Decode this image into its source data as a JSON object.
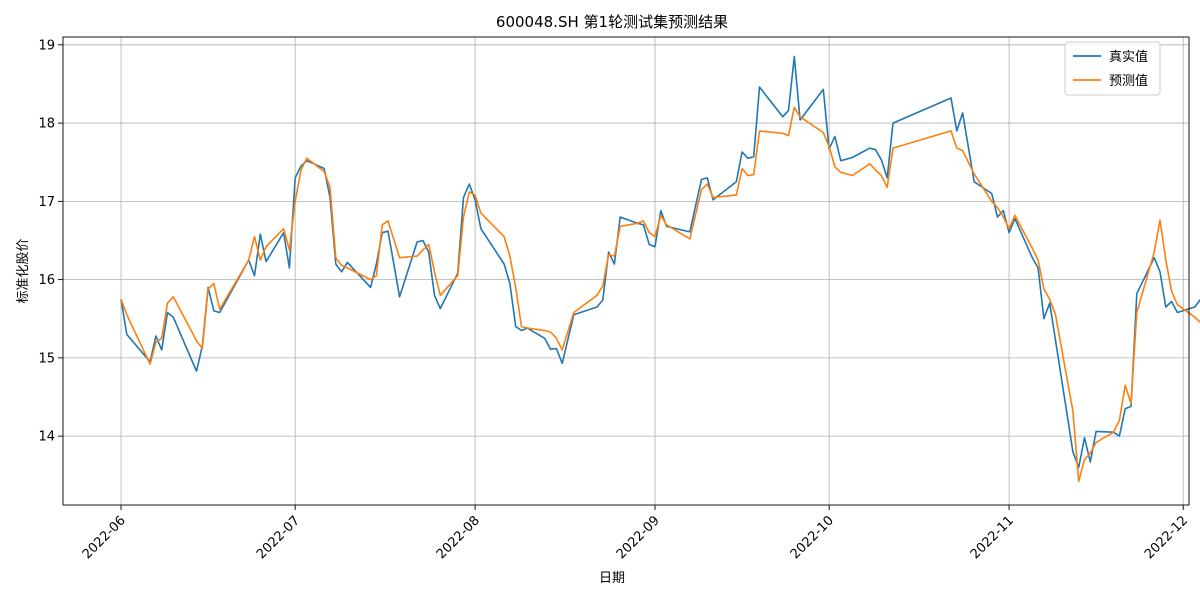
{
  "chart_data": {
    "type": "line",
    "title": "600048.SH 第1轮测试集预测结果",
    "xlabel": "日期",
    "ylabel": "标准化股价",
    "xlim": [
      "2022-05-22",
      "2022-12-02"
    ],
    "ylim": [
      13.12,
      19.1
    ],
    "x_ticks": [
      "2022-06",
      "2022-07",
      "2022-08",
      "2022-09",
      "2022-10",
      "2022-11",
      "2022-12"
    ],
    "y_ticks": [
      14,
      15,
      16,
      17,
      18,
      19
    ],
    "grid": true,
    "legend_position": "top-right",
    "series": [
      {
        "name": "真实值",
        "color": "#1f77b4",
        "points": [
          [
            "2022-06-01",
            15.75
          ],
          [
            "2022-06-02",
            15.3
          ],
          [
            "2022-06-06",
            14.95
          ],
          [
            "2022-06-07",
            15.28
          ],
          [
            "2022-06-08",
            15.1
          ],
          [
            "2022-06-09",
            15.58
          ],
          [
            "2022-06-10",
            15.52
          ],
          [
            "2022-06-14",
            14.83
          ],
          [
            "2022-06-15",
            15.15
          ],
          [
            "2022-06-16",
            15.9
          ],
          [
            "2022-06-17",
            15.6
          ],
          [
            "2022-06-18",
            15.58
          ],
          [
            "2022-06-23",
            16.25
          ],
          [
            "2022-06-24",
            16.05
          ],
          [
            "2022-06-25",
            16.58
          ],
          [
            "2022-06-26",
            16.23
          ],
          [
            "2022-06-29",
            16.6
          ],
          [
            "2022-06-30",
            16.15
          ],
          [
            "2022-07-01",
            17.3
          ],
          [
            "2022-07-02",
            17.45
          ],
          [
            "2022-07-03",
            17.52
          ],
          [
            "2022-07-06",
            17.42
          ],
          [
            "2022-07-07",
            17.05
          ],
          [
            "2022-07-08",
            16.2
          ],
          [
            "2022-07-09",
            16.1
          ],
          [
            "2022-07-10",
            16.22
          ],
          [
            "2022-07-14",
            15.9
          ],
          [
            "2022-07-15",
            16.2
          ],
          [
            "2022-07-16",
            16.6
          ],
          [
            "2022-07-17",
            16.62
          ],
          [
            "2022-07-19",
            15.78
          ],
          [
            "2022-07-22",
            16.48
          ],
          [
            "2022-07-23",
            16.5
          ],
          [
            "2022-07-24",
            16.35
          ],
          [
            "2022-07-25",
            15.8
          ],
          [
            "2022-07-26",
            15.63
          ],
          [
            "2022-07-29",
            16.08
          ],
          [
            "2022-07-30",
            17.05
          ],
          [
            "2022-07-31",
            17.22
          ],
          [
            "2022-08-01",
            17.02
          ],
          [
            "2022-08-02",
            16.65
          ],
          [
            "2022-08-06",
            16.2
          ],
          [
            "2022-08-07",
            15.95
          ],
          [
            "2022-08-08",
            15.4
          ],
          [
            "2022-08-09",
            15.35
          ],
          [
            "2022-08-10",
            15.38
          ],
          [
            "2022-08-13",
            15.25
          ],
          [
            "2022-08-14",
            15.11
          ],
          [
            "2022-08-15",
            15.12
          ],
          [
            "2022-08-16",
            14.93
          ],
          [
            "2022-08-18",
            15.55
          ],
          [
            "2022-08-22",
            15.65
          ],
          [
            "2022-08-23",
            15.74
          ],
          [
            "2022-08-24",
            16.35
          ],
          [
            "2022-08-25",
            16.2
          ],
          [
            "2022-08-26",
            16.8
          ],
          [
            "2022-08-29",
            16.72
          ],
          [
            "2022-08-30",
            16.7
          ],
          [
            "2022-08-31",
            16.45
          ],
          [
            "2022-09-01",
            16.42
          ],
          [
            "2022-09-02",
            16.88
          ],
          [
            "2022-09-03",
            16.68
          ],
          [
            "2022-09-07",
            16.61
          ],
          [
            "2022-09-09",
            17.28
          ],
          [
            "2022-09-10",
            17.3
          ],
          [
            "2022-09-11",
            17.02
          ],
          [
            "2022-09-15",
            17.25
          ],
          [
            "2022-09-16",
            17.63
          ],
          [
            "2022-09-17",
            17.55
          ],
          [
            "2022-09-18",
            17.57
          ],
          [
            "2022-09-19",
            18.46
          ],
          [
            "2022-09-23",
            18.08
          ],
          [
            "2022-09-24",
            18.16
          ],
          [
            "2022-09-25",
            18.85
          ],
          [
            "2022-09-26",
            18.04
          ],
          [
            "2022-09-30",
            18.43
          ],
          [
            "2022-10-01",
            17.67
          ],
          [
            "2022-10-02",
            17.83
          ],
          [
            "2022-10-03",
            17.52
          ],
          [
            "2022-10-05",
            17.56
          ],
          [
            "2022-10-08",
            17.68
          ],
          [
            "2022-10-09",
            17.66
          ],
          [
            "2022-10-10",
            17.53
          ],
          [
            "2022-10-11",
            17.3
          ],
          [
            "2022-10-12",
            18.0
          ],
          [
            "2022-10-22",
            18.32
          ],
          [
            "2022-10-23",
            17.9
          ],
          [
            "2022-10-24",
            18.13
          ],
          [
            "2022-10-26",
            17.25
          ],
          [
            "2022-10-29",
            17.1
          ],
          [
            "2022-10-30",
            16.8
          ],
          [
            "2022-10-31",
            16.88
          ],
          [
            "2022-11-01",
            16.6
          ],
          [
            "2022-11-02",
            16.78
          ],
          [
            "2022-11-05",
            16.28
          ],
          [
            "2022-11-06",
            16.15
          ],
          [
            "2022-11-07",
            15.5
          ],
          [
            "2022-11-08",
            15.7
          ],
          [
            "2022-11-12",
            13.8
          ],
          [
            "2022-11-13",
            13.6
          ],
          [
            "2022-11-14",
            13.98
          ],
          [
            "2022-11-15",
            13.67
          ],
          [
            "2022-11-16",
            14.06
          ],
          [
            "2022-11-19",
            14.05
          ],
          [
            "2022-11-20",
            14.0
          ],
          [
            "2022-11-21",
            14.35
          ],
          [
            "2022-11-22",
            14.38
          ],
          [
            "2022-11-23",
            15.82
          ],
          [
            "2022-11-26",
            16.28
          ],
          [
            "2022-11-27",
            16.1
          ],
          [
            "2022-11-28",
            15.65
          ],
          [
            "2022-11-29",
            15.72
          ],
          [
            "2022-11-30",
            15.58
          ],
          [
            "2022-12-03",
            15.65
          ],
          [
            "2022-12-04",
            15.75
          ],
          [
            "2022-12-05",
            15.8
          ]
        ]
      },
      {
        "name": "预测值",
        "color": "#ff7f0e",
        "points": [
          [
            "2022-06-01",
            15.75
          ],
          [
            "2022-06-02",
            15.55
          ],
          [
            "2022-06-06",
            14.92
          ],
          [
            "2022-06-07",
            15.2
          ],
          [
            "2022-06-08",
            15.25
          ],
          [
            "2022-06-09",
            15.7
          ],
          [
            "2022-06-10",
            15.78
          ],
          [
            "2022-06-14",
            15.22
          ],
          [
            "2022-06-15",
            15.12
          ],
          [
            "2022-06-16",
            15.88
          ],
          [
            "2022-06-17",
            15.95
          ],
          [
            "2022-06-18",
            15.62
          ],
          [
            "2022-06-23",
            16.25
          ],
          [
            "2022-06-24",
            16.55
          ],
          [
            "2022-06-25",
            16.25
          ],
          [
            "2022-06-26",
            16.42
          ],
          [
            "2022-06-29",
            16.65
          ],
          [
            "2022-06-30",
            16.38
          ],
          [
            "2022-07-01",
            17.0
          ],
          [
            "2022-07-02",
            17.4
          ],
          [
            "2022-07-03",
            17.55
          ],
          [
            "2022-07-06",
            17.38
          ],
          [
            "2022-07-07",
            17.18
          ],
          [
            "2022-07-08",
            16.28
          ],
          [
            "2022-07-09",
            16.18
          ],
          [
            "2022-07-10",
            16.15
          ],
          [
            "2022-07-14",
            16.0
          ],
          [
            "2022-07-15",
            16.05
          ],
          [
            "2022-07-16",
            16.7
          ],
          [
            "2022-07-17",
            16.75
          ],
          [
            "2022-07-19",
            16.28
          ],
          [
            "2022-07-22",
            16.3
          ],
          [
            "2022-07-23",
            16.38
          ],
          [
            "2022-07-24",
            16.45
          ],
          [
            "2022-07-25",
            16.1
          ],
          [
            "2022-07-26",
            15.8
          ],
          [
            "2022-07-29",
            16.05
          ],
          [
            "2022-07-30",
            16.8
          ],
          [
            "2022-07-31",
            17.12
          ],
          [
            "2022-08-01",
            17.08
          ],
          [
            "2022-08-02",
            16.85
          ],
          [
            "2022-08-06",
            16.55
          ],
          [
            "2022-08-07",
            16.3
          ],
          [
            "2022-08-08",
            15.9
          ],
          [
            "2022-08-09",
            15.4
          ],
          [
            "2022-08-10",
            15.38
          ],
          [
            "2022-08-13",
            15.35
          ],
          [
            "2022-08-14",
            15.33
          ],
          [
            "2022-08-15",
            15.25
          ],
          [
            "2022-08-16",
            15.1
          ],
          [
            "2022-08-18",
            15.58
          ],
          [
            "2022-08-22",
            15.8
          ],
          [
            "2022-08-23",
            15.92
          ],
          [
            "2022-08-24",
            16.32
          ],
          [
            "2022-08-25",
            16.3
          ],
          [
            "2022-08-26",
            16.68
          ],
          [
            "2022-08-29",
            16.72
          ],
          [
            "2022-08-30",
            16.75
          ],
          [
            "2022-08-31",
            16.6
          ],
          [
            "2022-09-01",
            16.55
          ],
          [
            "2022-09-02",
            16.82
          ],
          [
            "2022-09-03",
            16.7
          ],
          [
            "2022-09-07",
            16.52
          ],
          [
            "2022-09-09",
            17.15
          ],
          [
            "2022-09-10",
            17.22
          ],
          [
            "2022-09-11",
            17.05
          ],
          [
            "2022-09-15",
            17.08
          ],
          [
            "2022-09-16",
            17.42
          ],
          [
            "2022-09-17",
            17.33
          ],
          [
            "2022-09-18",
            17.34
          ],
          [
            "2022-09-19",
            17.9
          ],
          [
            "2022-09-23",
            17.87
          ],
          [
            "2022-09-24",
            17.84
          ],
          [
            "2022-09-25",
            18.2
          ],
          [
            "2022-09-26",
            18.08
          ],
          [
            "2022-09-30",
            17.88
          ],
          [
            "2022-10-01",
            17.7
          ],
          [
            "2022-10-02",
            17.44
          ],
          [
            "2022-10-03",
            17.37
          ],
          [
            "2022-10-05",
            17.33
          ],
          [
            "2022-10-08",
            17.48
          ],
          [
            "2022-10-09",
            17.4
          ],
          [
            "2022-10-10",
            17.33
          ],
          [
            "2022-10-11",
            17.18
          ],
          [
            "2022-10-12",
            17.68
          ],
          [
            "2022-10-22",
            17.9
          ],
          [
            "2022-10-23",
            17.68
          ],
          [
            "2022-10-24",
            17.65
          ],
          [
            "2022-10-26",
            17.35
          ],
          [
            "2022-10-29",
            17.0
          ],
          [
            "2022-10-30",
            16.92
          ],
          [
            "2022-10-31",
            16.8
          ],
          [
            "2022-11-01",
            16.65
          ],
          [
            "2022-11-02",
            16.82
          ],
          [
            "2022-11-05",
            16.4
          ],
          [
            "2022-11-06",
            16.25
          ],
          [
            "2022-11-07",
            15.88
          ],
          [
            "2022-11-08",
            15.75
          ],
          [
            "2022-11-09",
            15.55
          ],
          [
            "2022-11-12",
            14.32
          ],
          [
            "2022-11-13",
            13.42
          ],
          [
            "2022-11-14",
            13.7
          ],
          [
            "2022-11-15",
            13.78
          ],
          [
            "2022-11-16",
            13.92
          ],
          [
            "2022-11-19",
            14.05
          ],
          [
            "2022-11-20",
            14.2
          ],
          [
            "2022-11-21",
            14.65
          ],
          [
            "2022-11-22",
            14.42
          ],
          [
            "2022-11-23",
            15.58
          ],
          [
            "2022-11-26",
            16.35
          ],
          [
            "2022-11-27",
            16.76
          ],
          [
            "2022-11-28",
            16.25
          ],
          [
            "2022-11-29",
            15.85
          ],
          [
            "2022-11-30",
            15.68
          ],
          [
            "2022-12-03",
            15.52
          ],
          [
            "2022-12-04",
            15.45
          ],
          [
            "2022-12-05",
            15.85
          ]
        ]
      }
    ]
  }
}
